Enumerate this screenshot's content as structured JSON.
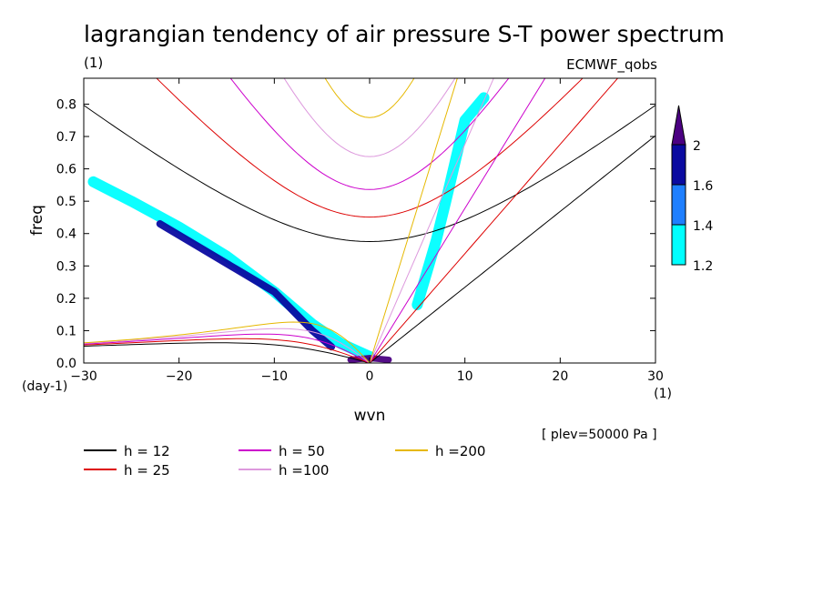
{
  "chart_data": {
    "type": "heatmap",
    "title": "lagrangian tendency of air pressure S-T power spectrum",
    "subtitle_left": "(1)",
    "subtitle_right": "ECMWF_qobs",
    "xlabel": "wvn",
    "ylabel": "freq",
    "x_units": "(1)",
    "y_units": "(day-1)",
    "note": "[ plev=50000 Pa ]",
    "xlim": [
      -30,
      30
    ],
    "ylim": [
      0,
      0.88
    ],
    "xticks": [
      -30,
      -20,
      -10,
      0,
      10,
      20,
      30
    ],
    "yticks": [
      0.0,
      0.1,
      0.2,
      0.3,
      0.4,
      0.5,
      0.6,
      0.7,
      0.8
    ],
    "colorbar": {
      "levels": [
        1.2,
        1.4,
        1.6,
        2
      ],
      "colors": [
        "#00ffff",
        "#1e7fff",
        "#0a0aa0",
        "#4b0082"
      ]
    },
    "dispersion_curves": [
      {
        "label": "h = 12",
        "h": 12,
        "color": "#000000"
      },
      {
        "label": "h = 25",
        "h": 25,
        "color": "#dd0000"
      },
      {
        "label": "h = 50",
        "h": 50,
        "color": "#cc00cc"
      },
      {
        "label": "h =100",
        "h": 100,
        "color": "#dd99dd"
      },
      {
        "label": "h =200",
        "h": 200,
        "color": "#e6b800"
      }
    ],
    "spectral_features": [
      {
        "name": "westward band",
        "level": 1.2,
        "points": [
          [
            -29,
            0.56
          ],
          [
            -25,
            0.5
          ],
          [
            -20,
            0.42
          ],
          [
            -15,
            0.33
          ],
          [
            -10,
            0.22
          ],
          [
            -6,
            0.12
          ],
          [
            -3,
            0.06
          ],
          [
            0,
            0.02
          ]
        ]
      },
      {
        "name": "westward band core",
        "level": 1.6,
        "points": [
          [
            -22,
            0.43
          ],
          [
            -18,
            0.36
          ],
          [
            -14,
            0.29
          ],
          [
            -10,
            0.22
          ],
          [
            -6,
            0.1
          ],
          [
            -4,
            0.05
          ]
        ]
      },
      {
        "name": "eastward band",
        "level": 1.2,
        "points": [
          [
            5,
            0.18
          ],
          [
            6,
            0.28
          ],
          [
            7,
            0.38
          ],
          [
            8,
            0.5
          ],
          [
            10,
            0.75
          ],
          [
            12,
            0.82
          ]
        ]
      },
      {
        "name": "origin peak",
        "level": 2,
        "points": [
          [
            -2,
            0.01
          ],
          [
            0,
            0.015
          ],
          [
            2,
            0.01
          ]
        ]
      }
    ]
  }
}
